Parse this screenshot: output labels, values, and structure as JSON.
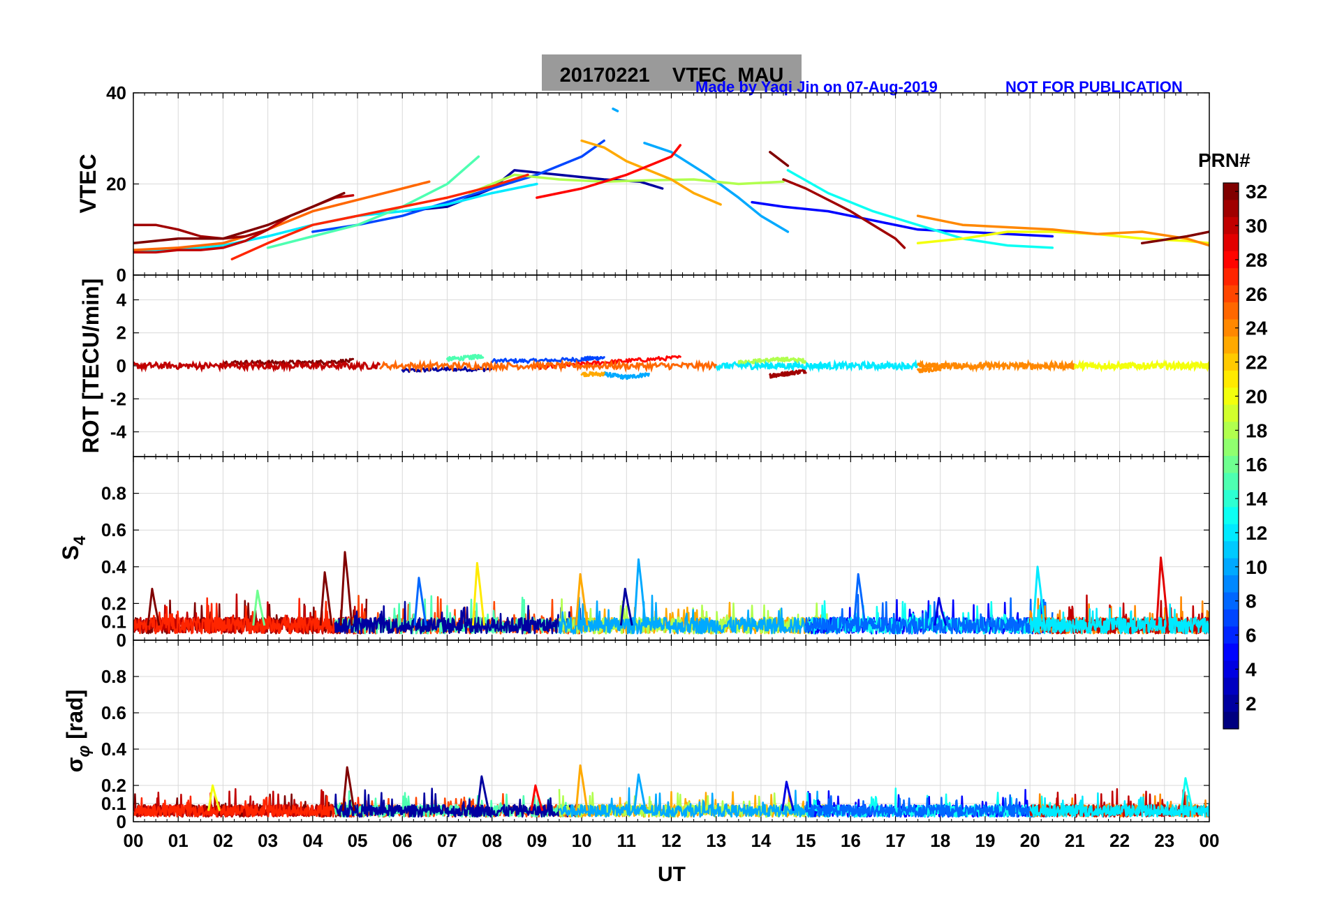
{
  "chart_data": {
    "type": "line",
    "title": "20170221    VTEC  MAU",
    "credit": "Made by Yaqi Jin on 07-Aug-2019",
    "notice": "NOT FOR PUBLICATION",
    "xlabel": "UT",
    "x_ticks": [
      "00",
      "01",
      "02",
      "03",
      "04",
      "05",
      "06",
      "07",
      "08",
      "09",
      "10",
      "11",
      "12",
      "13",
      "14",
      "15",
      "16",
      "17",
      "18",
      "19",
      "20",
      "21",
      "22",
      "23",
      "00"
    ],
    "xlim": [
      0,
      24
    ],
    "colorbar": {
      "label": "PRN#",
      "range": [
        1,
        32
      ],
      "ticks": [
        "2",
        "4",
        "6",
        "8",
        "10",
        "12",
        "14",
        "16",
        "18",
        "20",
        "22",
        "24",
        "26",
        "28",
        "30",
        "32"
      ]
    },
    "panels": [
      {
        "id": "vtec",
        "ylabel": "VTEC",
        "ylim": [
          0,
          40
        ],
        "y_ticks": [
          "0",
          "20",
          "40"
        ],
        "series": [
          {
            "prn": 2,
            "x": [
              6.0,
              7.0,
              8.0,
              8.5,
              9.5,
              10.5,
              11.3,
              11.8
            ],
            "y": [
              14,
              15,
              19,
              23,
              22,
              21,
              20.5,
              19
            ]
          },
          {
            "prn": 5,
            "x": [
              13.8,
              14.5,
              15.5,
              16.5,
              17.5,
              18.5,
              19.5,
              20.5
            ],
            "y": [
              16,
              15,
              14,
              12,
              10,
              9.5,
              9,
              8.5
            ]
          },
          {
            "prn": 7,
            "x": [
              4.0,
              5.0,
              6.0,
              7.0,
              8.0,
              9.0,
              10.0,
              10.5
            ],
            "y": [
              9.5,
              11,
              13,
              16,
              19,
              22,
              26,
              29.5
            ]
          },
          {
            "prn": 10,
            "x": [
              11.4,
              12.0,
              12.8,
              13.5,
              14.0,
              14.6
            ],
            "y": [
              29,
              27,
              22,
              17,
              13,
              9.5
            ]
          },
          {
            "prn": 10,
            "x": [
              10.7,
              10.8
            ],
            "y": [
              36.5,
              36.0
            ]
          },
          {
            "prn": 12,
            "x": [
              0.0,
              1.0,
              2.0,
              3.0,
              4.0,
              5.0,
              6.0,
              7.0,
              8.0,
              9.0
            ],
            "y": [
              5,
              5.5,
              6.5,
              8.5,
              11,
              13,
              14,
              15.5,
              18,
              20
            ]
          },
          {
            "prn": 13,
            "x": [
              14.6,
              15.5,
              16.5,
              17.5,
              18.5,
              19.5,
              20.5
            ],
            "y": [
              23,
              18,
              14,
              11,
              8,
              6.5,
              6
            ]
          },
          {
            "prn": 15,
            "x": [
              3.0,
              4.0,
              5.0,
              6.0,
              7.0,
              7.7
            ],
            "y": [
              6,
              8.5,
              11,
              15,
              20,
              26
            ]
          },
          {
            "prn": 18,
            "x": [
              7.5,
              8.5,
              9.5,
              10.5,
              11.5,
              12.5,
              13.5,
              14.5
            ],
            "y": [
              18,
              22,
              21,
              20.5,
              20.8,
              21,
              20,
              20.5
            ]
          },
          {
            "prn": 20,
            "x": [
              17.5,
              18.5,
              19.5,
              20.5,
              21.5,
              22.5,
              23.5,
              24.0
            ],
            "y": [
              7,
              8,
              9.5,
              9.5,
              9,
              8,
              7.5,
              7
            ]
          },
          {
            "prn": 23,
            "x": [
              10.0,
              10.5,
              11.0,
              12.0,
              12.5,
              13.1
            ],
            "y": [
              29.5,
              28,
              25,
              21,
              18,
              15.5
            ]
          },
          {
            "prn": 24,
            "x": [
              17.5,
              18.5,
              19.5,
              20.5,
              21.5,
              22.5,
              23.5,
              24.0
            ],
            "y": [
              13,
              11,
              10.5,
              10,
              9,
              9.5,
              8,
              6.5
            ]
          },
          {
            "prn": 25,
            "x": [
              0.0,
              1.0,
              2.0,
              3.0,
              4.0,
              5.0,
              6.0,
              6.6
            ],
            "y": [
              5.5,
              6,
              7,
              10,
              14,
              16.5,
              19,
              20.5
            ]
          },
          {
            "prn": 27,
            "x": [
              2.2,
              3.0,
              4.0,
              5.0,
              6.0,
              7.0,
              8.0,
              8.8
            ],
            "y": [
              3.5,
              7,
              11,
              13,
              15,
              17,
              19.5,
              22
            ]
          },
          {
            "prn": 28,
            "x": [
              9.0,
              10.0,
              11.0,
              12.0,
              12.2
            ],
            "y": [
              17,
              19,
              22,
              26,
              28.5
            ]
          },
          {
            "prn": 30,
            "x": [
              0.0,
              0.5,
              1.0,
              1.5,
              2.0,
              2.5,
              3.0,
              3.5,
              4.0,
              4.5,
              4.9
            ],
            "y": [
              5,
              5,
              5.5,
              5.5,
              6,
              7.5,
              10,
              13,
              15,
              17,
              17.5
            ]
          },
          {
            "prn": 31,
            "x": [
              0.0,
              0.5,
              1.0,
              1.5,
              2.0,
              2.5,
              3.0
            ],
            "y": [
              11,
              11,
              10,
              8.5,
              8,
              8.5,
              10
            ]
          },
          {
            "prn": 31,
            "x": [
              14.5,
              15.0,
              16.0,
              17.0,
              17.2
            ],
            "y": [
              21,
              19,
              14,
              8,
              6
            ]
          },
          {
            "prn": 32,
            "x": [
              0.0,
              1.0,
              2.0,
              3.0,
              4.0,
              4.7
            ],
            "y": [
              7,
              8,
              8,
              11,
              15,
              18
            ]
          },
          {
            "prn": 32,
            "x": [
              14.2,
              14.6
            ],
            "y": [
              27,
              24
            ]
          },
          {
            "prn": 32,
            "x": [
              22.5,
              23.5,
              24.0
            ],
            "y": [
              7,
              8.5,
              9.5
            ]
          }
        ]
      },
      {
        "id": "rot",
        "ylabel": "ROT [TECU/min]",
        "ylim": [
          -5.5,
          5.5
        ],
        "y_ticks": [
          "-4",
          "-2",
          "0",
          "2",
          "4"
        ],
        "series": [
          {
            "prn": 2,
            "x": [
              6.0,
              7.0,
              8.0
            ],
            "y": [
              -0.3,
              -0.2,
              -0.2
            ]
          },
          {
            "prn": 7,
            "x": [
              8.0,
              9.0,
              10.0,
              10.5
            ],
            "y": [
              0.3,
              0.3,
              0.4,
              0.5
            ]
          },
          {
            "prn": 10,
            "x": [
              10.5,
              11.0,
              11.5
            ],
            "y": [
              -0.5,
              -0.7,
              -0.5
            ]
          },
          {
            "prn": 15,
            "x": [
              7.0,
              7.5,
              7.8
            ],
            "y": [
              0.4,
              0.5,
              0.6
            ]
          },
          {
            "prn": 18,
            "x": [
              13.5,
              14.0,
              14.5,
              15.0
            ],
            "y": [
              0.2,
              0.3,
              0.4,
              0.3
            ]
          },
          {
            "prn": 23,
            "x": [
              10.0,
              10.5
            ],
            "y": [
              -0.5,
              -0.5
            ]
          },
          {
            "prn": 24,
            "x": [
              17.5,
              18.0
            ],
            "y": [
              -0.3,
              -0.2
            ]
          },
          {
            "prn": 28,
            "x": [
              9.0,
              10.0,
              11.0,
              12.2
            ],
            "y": [
              -0.1,
              0.1,
              0.3,
              0.5
            ]
          },
          {
            "prn": 31,
            "x": [
              14.2,
              14.5,
              15.0
            ],
            "y": [
              -0.6,
              -0.5,
              -0.3
            ]
          },
          {
            "prn": 32,
            "x": [
              2.0,
              3.0,
              4.0,
              4.9
            ],
            "y": [
              0.2,
              0.2,
              0.2,
              0.3
            ]
          }
        ]
      },
      {
        "id": "s4",
        "ylabel": "S4",
        "ylim": [
          0,
          1.0
        ],
        "y_ticks": [
          "0",
          "0.1",
          "0.2",
          "0.4",
          "0.6",
          "0.8"
        ],
        "baseline": 0.08,
        "peaks": [
          {
            "prn": 32,
            "x": 0.45,
            "y": 0.28
          },
          {
            "prn": 32,
            "x": 4.3,
            "y": 0.37
          },
          {
            "prn": 32,
            "x": 4.75,
            "y": 0.48
          },
          {
            "prn": 16,
            "x": 2.8,
            "y": 0.27
          },
          {
            "prn": 8,
            "x": 6.4,
            "y": 0.34
          },
          {
            "prn": 21,
            "x": 7.7,
            "y": 0.42
          },
          {
            "prn": 23,
            "x": 10.0,
            "y": 0.36
          },
          {
            "prn": 10,
            "x": 11.3,
            "y": 0.44
          },
          {
            "prn": 2,
            "x": 11.0,
            "y": 0.28
          },
          {
            "prn": 8,
            "x": 16.2,
            "y": 0.36
          },
          {
            "prn": 12,
            "x": 20.2,
            "y": 0.4
          },
          {
            "prn": 29,
            "x": 22.95,
            "y": 0.45
          },
          {
            "prn": 4,
            "x": 18.0,
            "y": 0.23
          }
        ]
      },
      {
        "id": "sigma_phi",
        "ylabel": "σ_φ [rad]",
        "ylim": [
          0,
          1.0
        ],
        "y_ticks": [
          "0",
          "0.1",
          "0.2",
          "0.4",
          "0.6",
          "0.8"
        ],
        "baseline": 0.06,
        "peaks": [
          {
            "prn": 32,
            "x": 4.8,
            "y": 0.3
          },
          {
            "prn": 23,
            "x": 10.0,
            "y": 0.31
          },
          {
            "prn": 2,
            "x": 7.8,
            "y": 0.25
          },
          {
            "prn": 10,
            "x": 11.3,
            "y": 0.26
          },
          {
            "prn": 4,
            "x": 14.6,
            "y": 0.22
          },
          {
            "prn": 13,
            "x": 23.5,
            "y": 0.24
          },
          {
            "prn": 20,
            "x": 1.8,
            "y": 0.2
          },
          {
            "prn": 28,
            "x": 9.0,
            "y": 0.2
          }
        ]
      }
    ]
  }
}
